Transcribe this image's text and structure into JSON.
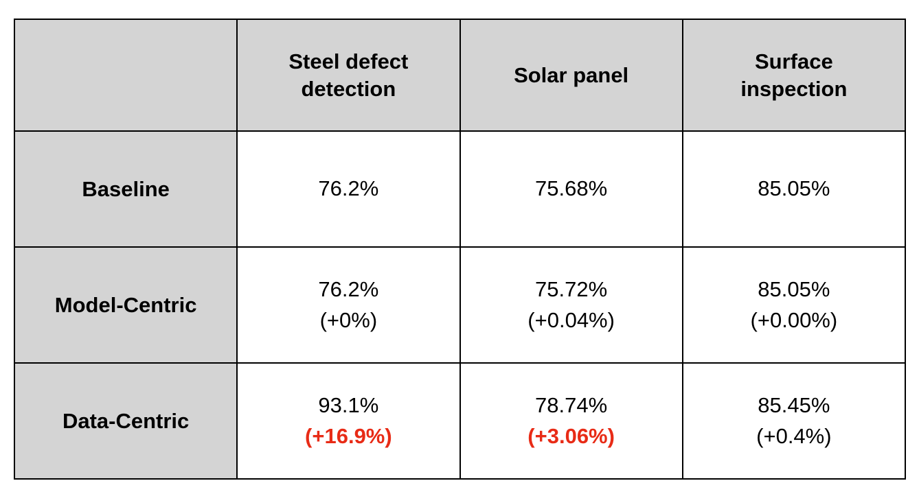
{
  "table": {
    "colors": {
      "header_bg": "#d4d4d4",
      "highlight_red": "#e82b16",
      "border": "#000000",
      "text": "#000000"
    },
    "columns": [
      "",
      "Steel defect detection",
      "Solar panel",
      "Surface inspection"
    ],
    "rows": [
      {
        "label": "Baseline",
        "cells": [
          {
            "value": "76.2%"
          },
          {
            "value": "75.68%"
          },
          {
            "value": "85.05%"
          }
        ]
      },
      {
        "label": "Model-Centric",
        "cells": [
          {
            "value": "76.2%",
            "delta": "(+0%)"
          },
          {
            "value": "75.72%",
            "delta": "(+0.04%)"
          },
          {
            "value": "85.05%",
            "delta": "(+0.00%)"
          }
        ]
      },
      {
        "label": "Data-Centric",
        "cells": [
          {
            "value": "93.1%",
            "delta": "(+16.9%)",
            "highlight": true
          },
          {
            "value": "78.74%",
            "delta": "(+3.06%)",
            "highlight": true
          },
          {
            "value": "85.45%",
            "delta": "(+0.4%)"
          }
        ]
      }
    ]
  },
  "chart_data": {
    "type": "table",
    "title": "",
    "columns": [
      "",
      "Steel defect detection",
      "Solar panel",
      "Surface inspection"
    ],
    "rows": [
      [
        "Baseline",
        "76.2%",
        "75.68%",
        "85.05%"
      ],
      [
        "Model-Centric",
        "76.2% (+0%)",
        "75.72% (+0.04%)",
        "85.05% (+0.00%)"
      ],
      [
        "Data-Centric",
        "93.1% (+16.9%)",
        "78.74% (+3.06%)",
        "85.45% (+0.4%)"
      ]
    ],
    "series": [
      {
        "name": "Baseline",
        "values": [
          76.2,
          75.68,
          85.05
        ]
      },
      {
        "name": "Model-Centric",
        "values": [
          76.2,
          75.72,
          85.05
        ],
        "delta": [
          0,
          0.04,
          0.0
        ]
      },
      {
        "name": "Data-Centric",
        "values": [
          93.1,
          78.74,
          85.45
        ],
        "delta": [
          16.9,
          3.06,
          0.4
        ]
      }
    ],
    "highlighted_cells": [
      {
        "row": "Data-Centric",
        "column": "Steel defect detection",
        "delta": "+16.9%"
      },
      {
        "row": "Data-Centric",
        "column": "Solar panel",
        "delta": "+3.06%"
      }
    ]
  }
}
